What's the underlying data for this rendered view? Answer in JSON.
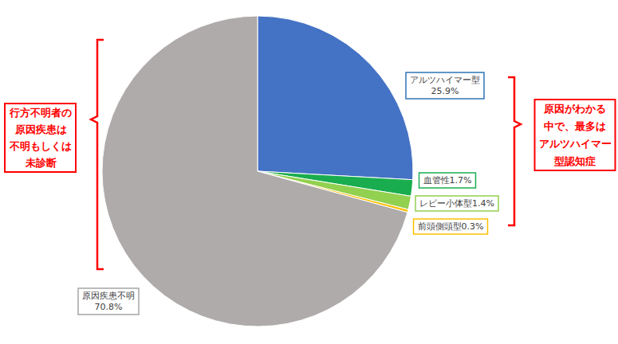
{
  "chart_data": {
    "type": "pie",
    "categories": [
      "アルツハイマー型",
      "血管性",
      "レビー小体型",
      "前頭側頭型",
      "原因疾患不明"
    ],
    "values": [
      25.9,
      1.7,
      1.4,
      0.3,
      70.8
    ],
    "value_labels": [
      "25.9%",
      "1.7%",
      "1.4%",
      "0.3%",
      "70.8%"
    ],
    "colors": [
      "#4472c4",
      "#1aad4f",
      "#92d050",
      "#ffc000",
      "#afabab"
    ],
    "data_labels": true,
    "annotations": [
      [
        "行方不明者の",
        "原因疾患は",
        "不明もしくは",
        "未診断"
      ],
      [
        "原因がわかる",
        "中で、最多は",
        "アルツハイマー",
        "型認知症"
      ]
    ]
  }
}
